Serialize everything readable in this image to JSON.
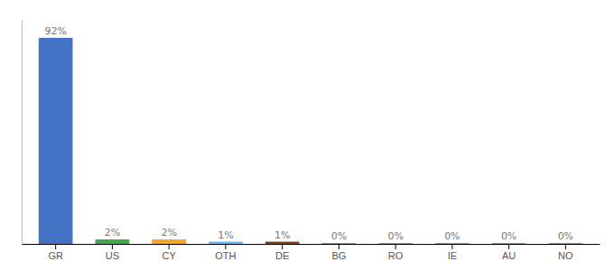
{
  "chart_data": {
    "type": "bar",
    "categories": [
      "GR",
      "US",
      "CY",
      "OTH",
      "DE",
      "BG",
      "RO",
      "IE",
      "AU",
      "NO"
    ],
    "values": [
      92,
      2,
      2,
      1,
      1,
      0.3,
      0.3,
      0.3,
      0.3,
      0.3
    ],
    "value_labels": [
      "92%",
      "2%",
      "2%",
      "1%",
      "1%",
      "0%",
      "0%",
      "0%",
      "0%",
      "0%"
    ],
    "colors": [
      "#4472c4",
      "#43a84a",
      "#f5a623",
      "#64b5f6",
      "#8b3d10",
      "#4472c4",
      "#4472c4",
      "#4472c4",
      "#4472c4",
      "#4472c4"
    ],
    "ylim": [
      0,
      100
    ],
    "data_labels": true,
    "tick_labels": "x"
  }
}
